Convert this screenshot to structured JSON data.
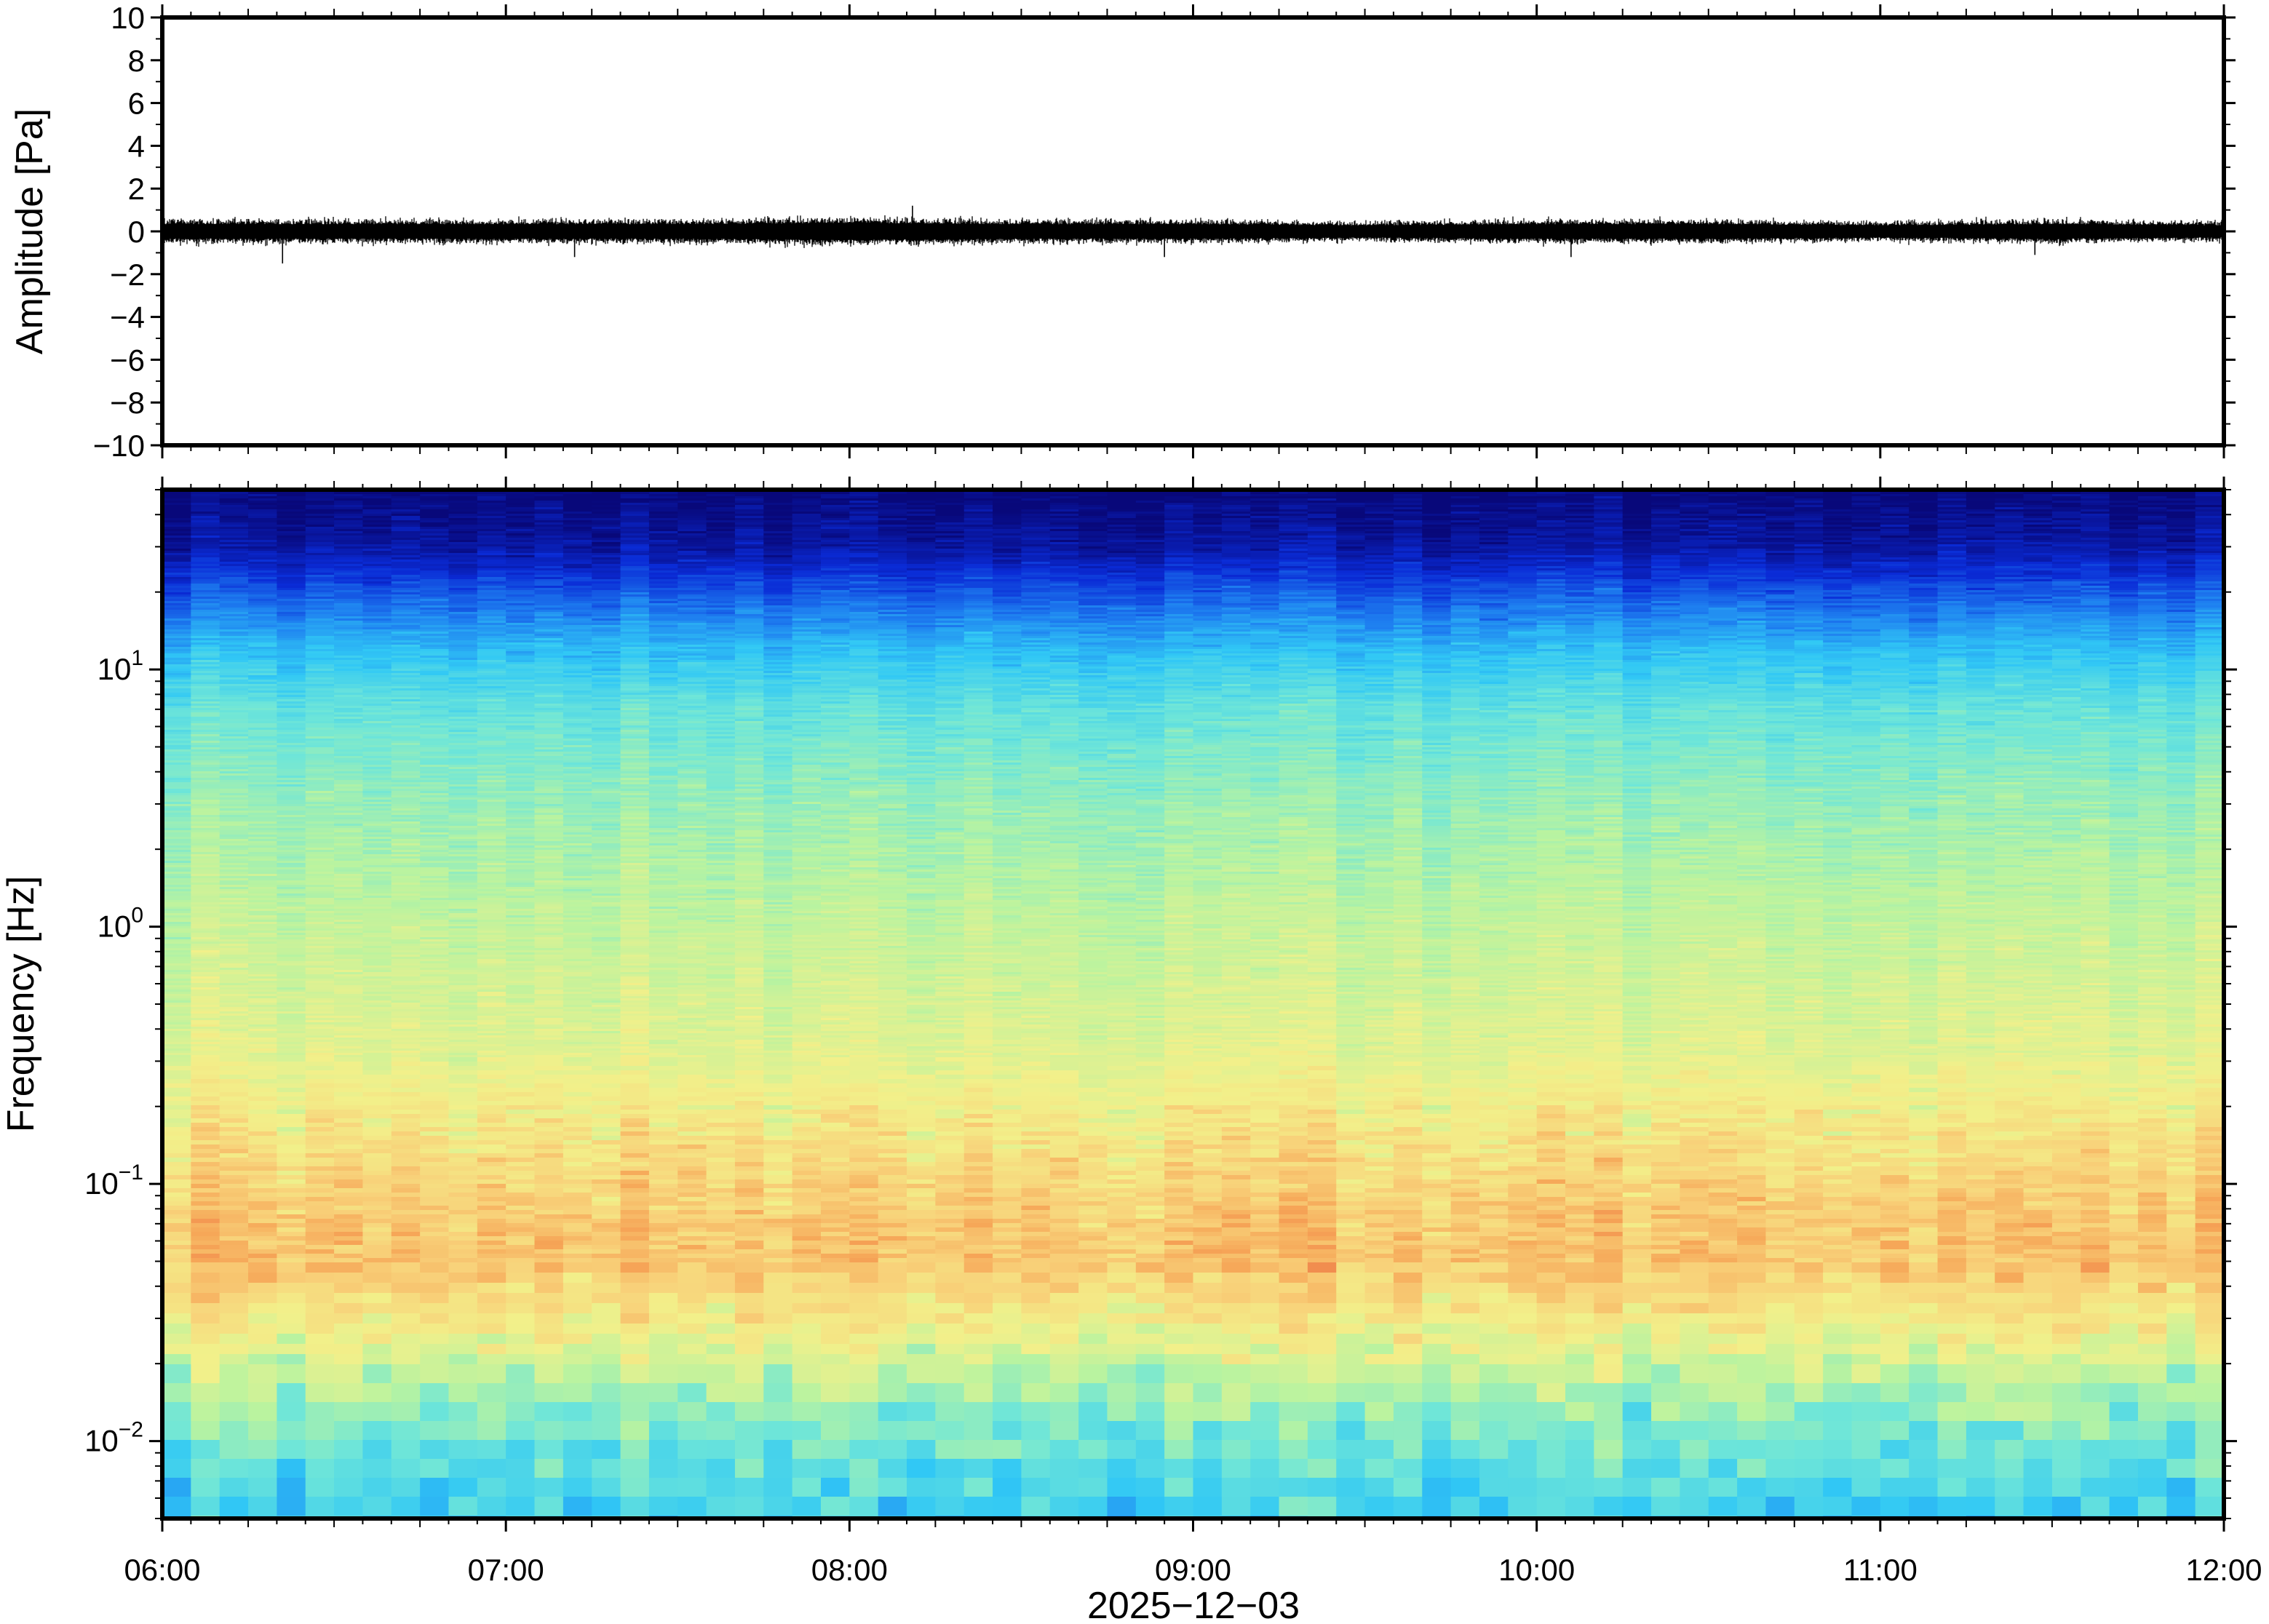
{
  "chart_data": [
    {
      "type": "line",
      "ylabel": "Amplitude [Pa]",
      "ylim": [
        -10,
        10
      ],
      "y_ticks": [
        "10",
        "8",
        "6",
        "4",
        "2",
        "0",
        "−2",
        "−4",
        "−6",
        "−8",
        "−10"
      ],
      "y_tick_values": [
        10,
        8,
        6,
        4,
        2,
        0,
        -2,
        -4,
        -6,
        -8,
        -10
      ],
      "x_range": [
        "06:00",
        "12:00"
      ],
      "series": [
        {
          "x": [
            "06:00",
            "06:30",
            "07:00",
            "07:30",
            "08:00",
            "08:30",
            "09:00",
            "09:30",
            "10:00",
            "10:30",
            "11:00",
            "11:30",
            "12:00"
          ],
          "envelope_min": [
            -0.6,
            -0.6,
            -0.6,
            -0.6,
            -0.7,
            -0.6,
            -0.6,
            -0.5,
            -0.6,
            -0.6,
            -0.5,
            -0.6,
            -0.5
          ],
          "envelope_max": [
            0.6,
            0.6,
            0.6,
            0.6,
            0.7,
            0.6,
            0.6,
            0.5,
            0.6,
            0.6,
            0.5,
            0.6,
            0.5
          ],
          "spikes": [
            {
              "t": "06:21",
              "v": -1.5
            },
            {
              "t": "07:12",
              "v": -1.2
            },
            {
              "t": "08:11",
              "v": 1.2
            },
            {
              "t": "08:55",
              "v": -1.2
            },
            {
              "t": "10:06",
              "v": -1.2
            },
            {
              "t": "11:27",
              "v": -1.1
            }
          ]
        }
      ],
      "grid": false
    },
    {
      "type": "heatmap",
      "ylabel": "Frequency [Hz]",
      "xlabel": "2025−12−03",
      "y_scale": "log",
      "ylim_hz": [
        0.005,
        50
      ],
      "y_ticks": [
        {
          "value": 10,
          "base": "10",
          "exp": "1"
        },
        {
          "value": 1,
          "base": "10",
          "exp": "0"
        },
        {
          "value": 0.1,
          "base": "10",
          "exp": "−1"
        },
        {
          "value": 0.01,
          "base": "10",
          "exp": "−2"
        }
      ],
      "x_ticks": [
        "06:00",
        "07:00",
        "08:00",
        "09:00",
        "10:00",
        "11:00",
        "12:00"
      ],
      "colormap": "jet",
      "colormap_stops": [
        "#08087a",
        "#0a2bd6",
        "#1e7ff0",
        "#31c8f5",
        "#6fe6d8",
        "#b9f3a0",
        "#f2f08a",
        "#f8d27a",
        "#f6a758",
        "#ec6d43"
      ],
      "level_by_frequency": [
        {
          "hz": 50,
          "level": 0.0
        },
        {
          "hz": 30,
          "level": 0.05
        },
        {
          "hz": 20,
          "level": 0.17
        },
        {
          "hz": 12,
          "level": 0.32
        },
        {
          "hz": 7,
          "level": 0.43
        },
        {
          "hz": 3,
          "level": 0.51
        },
        {
          "hz": 1,
          "level": 0.58
        },
        {
          "hz": 0.3,
          "level": 0.64
        },
        {
          "hz": 0.15,
          "level": 0.72
        },
        {
          "hz": 0.08,
          "level": 0.8
        },
        {
          "hz": 0.05,
          "level": 0.82
        },
        {
          "hz": 0.03,
          "level": 0.7
        },
        {
          "hz": 0.02,
          "level": 0.6
        },
        {
          "hz": 0.013,
          "level": 0.5
        },
        {
          "hz": 0.008,
          "level": 0.42
        },
        {
          "hz": 0.005,
          "level": 0.36
        }
      ],
      "grid": false
    }
  ]
}
